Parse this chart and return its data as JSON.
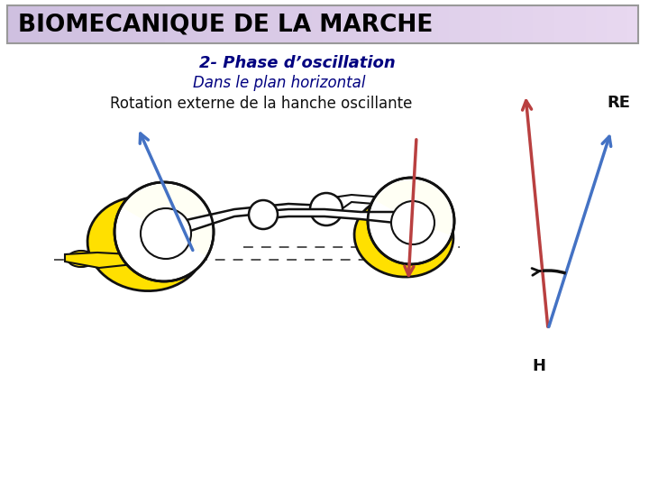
{
  "title": "BIOMECANIQUE DE LA MARCHE",
  "subtitle1": "2- Phase d’oscillation",
  "subtitle2": "Dans le plan horizontal",
  "subtitle3": "Rotation externe de la hanche oscillante",
  "title_bg_left": "#cfc0e0",
  "title_bg_right": "#ddd0ee",
  "title_border": "#999999",
  "subtitle1_color": "#000080",
  "subtitle2_color": "#000080",
  "subtitle3_color": "#111111",
  "label_RE": "RE",
  "label_H": "H",
  "blue_color": "#4472C4",
  "red_color": "#B94040",
  "black": "#111111",
  "yellow": "#FFE000",
  "bg": "#FFFFFF"
}
